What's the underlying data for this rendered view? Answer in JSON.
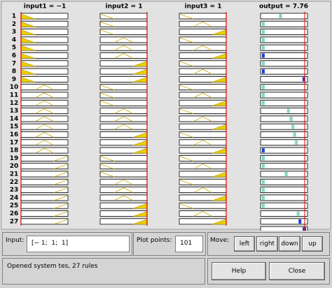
{
  "header": {
    "input1": "input1 = −1",
    "input2": "input2 = 1",
    "input3": "input3 = 1",
    "output": "output = 7.76"
  },
  "rules": [
    1,
    2,
    3,
    4,
    5,
    6,
    7,
    8,
    9,
    10,
    11,
    12,
    13,
    14,
    15,
    16,
    17,
    18,
    19,
    20,
    21,
    22,
    23,
    24,
    25,
    26,
    27
  ],
  "controls": {
    "input_label": "Input:",
    "input_value": "[− 1;  1;  1]",
    "plot_points_label": "Plot points:",
    "plot_points_value": "101",
    "move_label": "Move:",
    "move_buttons": [
      "left",
      "right",
      "down",
      "up"
    ]
  },
  "status": "Opened system tes, 27 rules",
  "buttons": [
    "Help",
    "Close"
  ]
}
